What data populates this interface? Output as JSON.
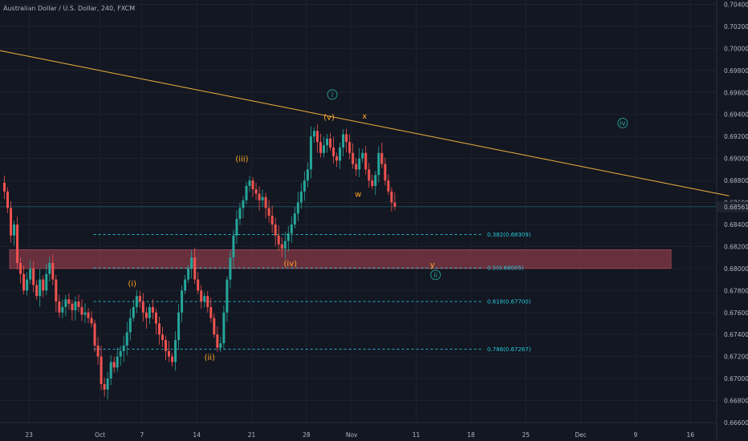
{
  "header": {
    "symbol": "Australian Dollar / U.S. Dollar, 240, FXCM"
  },
  "colors": {
    "background": "#131722",
    "up": "#26a69a",
    "down": "#ef5350",
    "fib": "#26c6da",
    "trendline": "#f0b33f",
    "zone": "#8d3a48",
    "wave_minor": "#ffa726",
    "wave_major": "#26a69a"
  },
  "chart_data": {
    "type": "candlestick",
    "instrument": "Australian Dollar / U.S. Dollar",
    "timeframe": "240",
    "source": "FXCM",
    "ylim": [
      0.666,
      0.7044
    ],
    "y_ticks": [
      "0.70400",
      "0.70200",
      "0.70000",
      "0.69800",
      "0.69600",
      "0.69400",
      "0.69200",
      "0.69000",
      "0.68800",
      "0.68600",
      "0.68400",
      "0.68200",
      "0.68000",
      "0.67800",
      "0.67600",
      "0.67400",
      "0.67200",
      "0.67000",
      "0.66800",
      "0.66600"
    ],
    "x_ticks": [
      {
        "label": "23",
        "bar": 8
      },
      {
        "label": "Oct",
        "bar": 30
      },
      {
        "label": "7",
        "bar": 43
      },
      {
        "label": "14",
        "bar": 60
      },
      {
        "label": "21",
        "bar": 77
      },
      {
        "label": "28",
        "bar": 94
      },
      {
        "label": "Nov",
        "bar": 108
      },
      {
        "label": "11",
        "bar": 128
      },
      {
        "label": "18",
        "bar": 145
      },
      {
        "label": "25",
        "bar": 162
      },
      {
        "label": "Dec",
        "bar": 179
      },
      {
        "label": "9",
        "bar": 196
      },
      {
        "label": "16",
        "bar": 213
      }
    ],
    "price_series": [
      0.687,
      0.6855,
      0.683,
      0.684,
      0.6805,
      0.6795,
      0.678,
      0.679,
      0.68,
      0.6785,
      0.6775,
      0.679,
      0.678,
      0.6795,
      0.6805,
      0.679,
      0.677,
      0.676,
      0.6765,
      0.6772,
      0.6768,
      0.6762,
      0.677,
      0.6765,
      0.6758,
      0.676,
      0.6755,
      0.675,
      0.673,
      0.672,
      0.6695,
      0.669,
      0.67,
      0.6715,
      0.671,
      0.672,
      0.6725,
      0.673,
      0.6742,
      0.6755,
      0.6765,
      0.6775,
      0.677,
      0.676,
      0.6755,
      0.6765,
      0.676,
      0.675,
      0.674,
      0.6735,
      0.6725,
      0.672,
      0.6715,
      0.6735,
      0.676,
      0.678,
      0.679,
      0.68,
      0.681,
      0.679,
      0.678,
      0.677,
      0.6775,
      0.6765,
      0.6755,
      0.674,
      0.6728,
      0.6732,
      0.676,
      0.679,
      0.681,
      0.683,
      0.6845,
      0.6855,
      0.6862,
      0.6875,
      0.688,
      0.6872,
      0.6868,
      0.6862,
      0.6865,
      0.6855,
      0.6848,
      0.684,
      0.683,
      0.6822,
      0.6818,
      0.6825,
      0.6832,
      0.684,
      0.685,
      0.686,
      0.687,
      0.688,
      0.689,
      0.692,
      0.6925,
      0.6915,
      0.6905,
      0.6912,
      0.6918,
      0.691,
      0.6902,
      0.6898,
      0.691,
      0.6922,
      0.6915,
      0.6905,
      0.6895,
      0.689,
      0.69,
      0.6905,
      0.689,
      0.688,
      0.6875,
      0.6885,
      0.6905,
      0.6895,
      0.688,
      0.687,
      0.686,
      0.68561
    ],
    "last_price": "0.68561",
    "fib_levels": [
      {
        "ratio": "0.382",
        "price": 0.68309,
        "label": "0.382(0.68309)"
      },
      {
        "ratio": "0.5",
        "price": 0.68005,
        "label": "0.5(0.68005)"
      },
      {
        "ratio": "0.618",
        "price": 0.677,
        "label": "0.618(0.67700)"
      },
      {
        "ratio": "0.786",
        "price": 0.67267,
        "label": "0.786(0.67267)"
      }
    ],
    "fib_start_bar": 28,
    "support_zone": {
      "from": 0.68,
      "to": 0.6812,
      "start_bar": 0,
      "end_bar": 207
    },
    "trendline": {
      "from": {
        "bar": 0,
        "price": 0.6998
      },
      "to": {
        "bar": 225,
        "price": 0.6866
      }
    },
    "wave_labels": [
      {
        "text": "(i)",
        "bar": 40,
        "price": 0.6784,
        "style": "minor"
      },
      {
        "text": "(ii)",
        "bar": 64,
        "price": 0.6717,
        "style": "minor"
      },
      {
        "text": "(iii)",
        "bar": 74,
        "price": 0.6897,
        "style": "minor"
      },
      {
        "text": "(iv)",
        "bar": 89,
        "price": 0.6802,
        "style": "minor"
      },
      {
        "text": "(v)",
        "bar": 101,
        "price": 0.6935,
        "style": "minor"
      },
      {
        "text": "x",
        "bar": 112,
        "price": 0.6936,
        "style": "minor"
      },
      {
        "text": "w",
        "bar": 110,
        "price": 0.6865,
        "style": "minor"
      },
      {
        "text": "y",
        "bar": 133,
        "price": 0.6801,
        "style": "minor"
      },
      {
        "text": "i",
        "bar": 102,
        "price": 0.6956,
        "style": "major"
      },
      {
        "text": "ii",
        "bar": 134,
        "price": 0.6792,
        "style": "major"
      },
      {
        "text": "iv",
        "bar": 192,
        "price": 0.693,
        "style": "major"
      }
    ]
  }
}
